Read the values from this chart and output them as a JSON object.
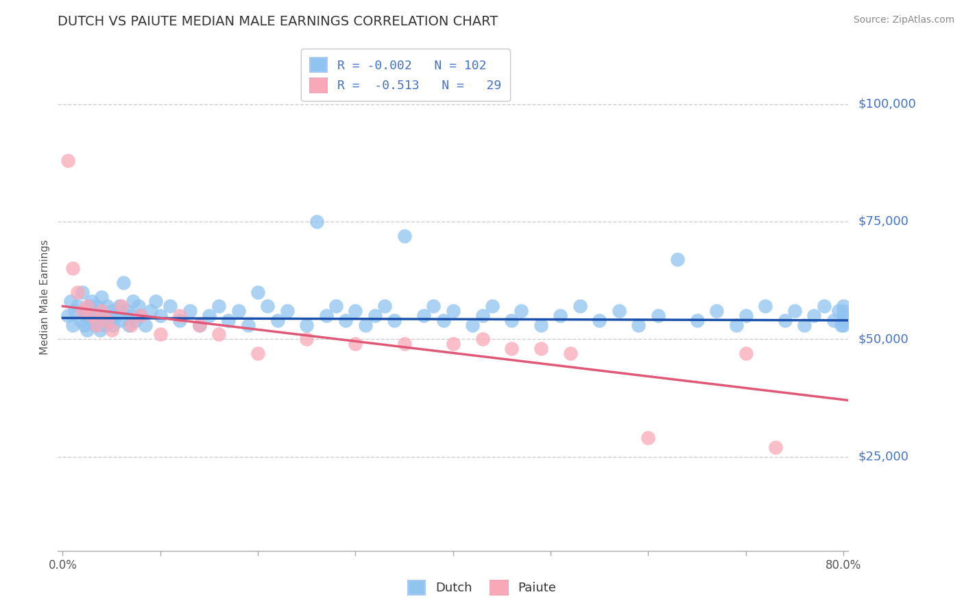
{
  "title": "DUTCH VS PAIUTE MEDIAN MALE EARNINGS CORRELATION CHART",
  "source": "Source: ZipAtlas.com",
  "ylabel": "Median Male Earnings",
  "xlim": [
    -0.005,
    0.805
  ],
  "ylim": [
    5000,
    113000
  ],
  "dutch_R": -0.002,
  "dutch_N": 102,
  "paiute_R": -0.513,
  "paiute_N": 29,
  "dutch_color": "#90C4F0",
  "paiute_color": "#F9A8B8",
  "dutch_line_color": "#1A4FAA",
  "paiute_line_color": "#E05878",
  "title_color": "#333333",
  "axis_label_color": "#555555",
  "ytick_color": "#4472C4",
  "source_color": "#888888",
  "grid_color": "#CCCCCC",
  "background_color": "#FFFFFF",
  "legend_text_color": "#4472C4",
  "legend_R_color": "#E05878",
  "ytick_vals": [
    25000,
    50000,
    75000,
    100000
  ],
  "ytick_labels": [
    "$25,000",
    "$50,000",
    "$75,000",
    "$100,000"
  ],
  "dutch_trend_y0": 54500,
  "dutch_trend_y1": 54000,
  "paiute_trend_y0": 57000,
  "paiute_trend_y1": 37000,
  "dutch_x": [
    0.005,
    0.008,
    0.01,
    0.012,
    0.015,
    0.018,
    0.02,
    0.022,
    0.022,
    0.025,
    0.025,
    0.028,
    0.03,
    0.03,
    0.032,
    0.033,
    0.035,
    0.035,
    0.037,
    0.038,
    0.04,
    0.04,
    0.042,
    0.043,
    0.045,
    0.048,
    0.05,
    0.052,
    0.055,
    0.058,
    0.06,
    0.062,
    0.065,
    0.068,
    0.07,
    0.072,
    0.075,
    0.078,
    0.08,
    0.085,
    0.09,
    0.095,
    0.1,
    0.11,
    0.12,
    0.13,
    0.14,
    0.15,
    0.16,
    0.17,
    0.18,
    0.19,
    0.2,
    0.21,
    0.22,
    0.23,
    0.25,
    0.26,
    0.27,
    0.28,
    0.29,
    0.3,
    0.31,
    0.32,
    0.33,
    0.34,
    0.35,
    0.37,
    0.38,
    0.39,
    0.4,
    0.42,
    0.43,
    0.44,
    0.46,
    0.47,
    0.49,
    0.51,
    0.53,
    0.55,
    0.57,
    0.59,
    0.61,
    0.63,
    0.65,
    0.67,
    0.69,
    0.7,
    0.72,
    0.74,
    0.75,
    0.76,
    0.77,
    0.78,
    0.79,
    0.795,
    0.798,
    0.8,
    0.8,
    0.8,
    0.8,
    0.8
  ],
  "dutch_y": [
    55000,
    58000,
    53000,
    56000,
    57000,
    54000,
    60000,
    53000,
    56000,
    52000,
    55000,
    57000,
    54000,
    58000,
    56000,
    53000,
    55000,
    57000,
    54000,
    52000,
    56000,
    59000,
    55000,
    53000,
    57000,
    54000,
    56000,
    53000,
    55000,
    57000,
    54000,
    62000,
    56000,
    53000,
    55000,
    58000,
    54000,
    57000,
    55000,
    53000,
    56000,
    58000,
    55000,
    57000,
    54000,
    56000,
    53000,
    55000,
    57000,
    54000,
    56000,
    53000,
    60000,
    57000,
    54000,
    56000,
    53000,
    75000,
    55000,
    57000,
    54000,
    56000,
    53000,
    55000,
    57000,
    54000,
    72000,
    55000,
    57000,
    54000,
    56000,
    53000,
    55000,
    57000,
    54000,
    56000,
    53000,
    55000,
    57000,
    54000,
    56000,
    53000,
    55000,
    67000,
    54000,
    56000,
    53000,
    55000,
    57000,
    54000,
    56000,
    53000,
    55000,
    57000,
    54000,
    56000,
    53000,
    55000,
    57000,
    54000,
    56000,
    53000
  ],
  "paiute_x": [
    0.005,
    0.01,
    0.015,
    0.02,
    0.025,
    0.03,
    0.035,
    0.04,
    0.045,
    0.05,
    0.06,
    0.07,
    0.08,
    0.1,
    0.12,
    0.14,
    0.16,
    0.2,
    0.25,
    0.3,
    0.35,
    0.4,
    0.43,
    0.46,
    0.49,
    0.52,
    0.6,
    0.7,
    0.73
  ],
  "paiute_y": [
    88000,
    65000,
    60000,
    56000,
    57000,
    55000,
    53000,
    56000,
    54000,
    52000,
    57000,
    53000,
    55000,
    51000,
    55000,
    53000,
    51000,
    47000,
    50000,
    49000,
    49000,
    49000,
    50000,
    48000,
    48000,
    47000,
    29000,
    47000,
    27000
  ]
}
